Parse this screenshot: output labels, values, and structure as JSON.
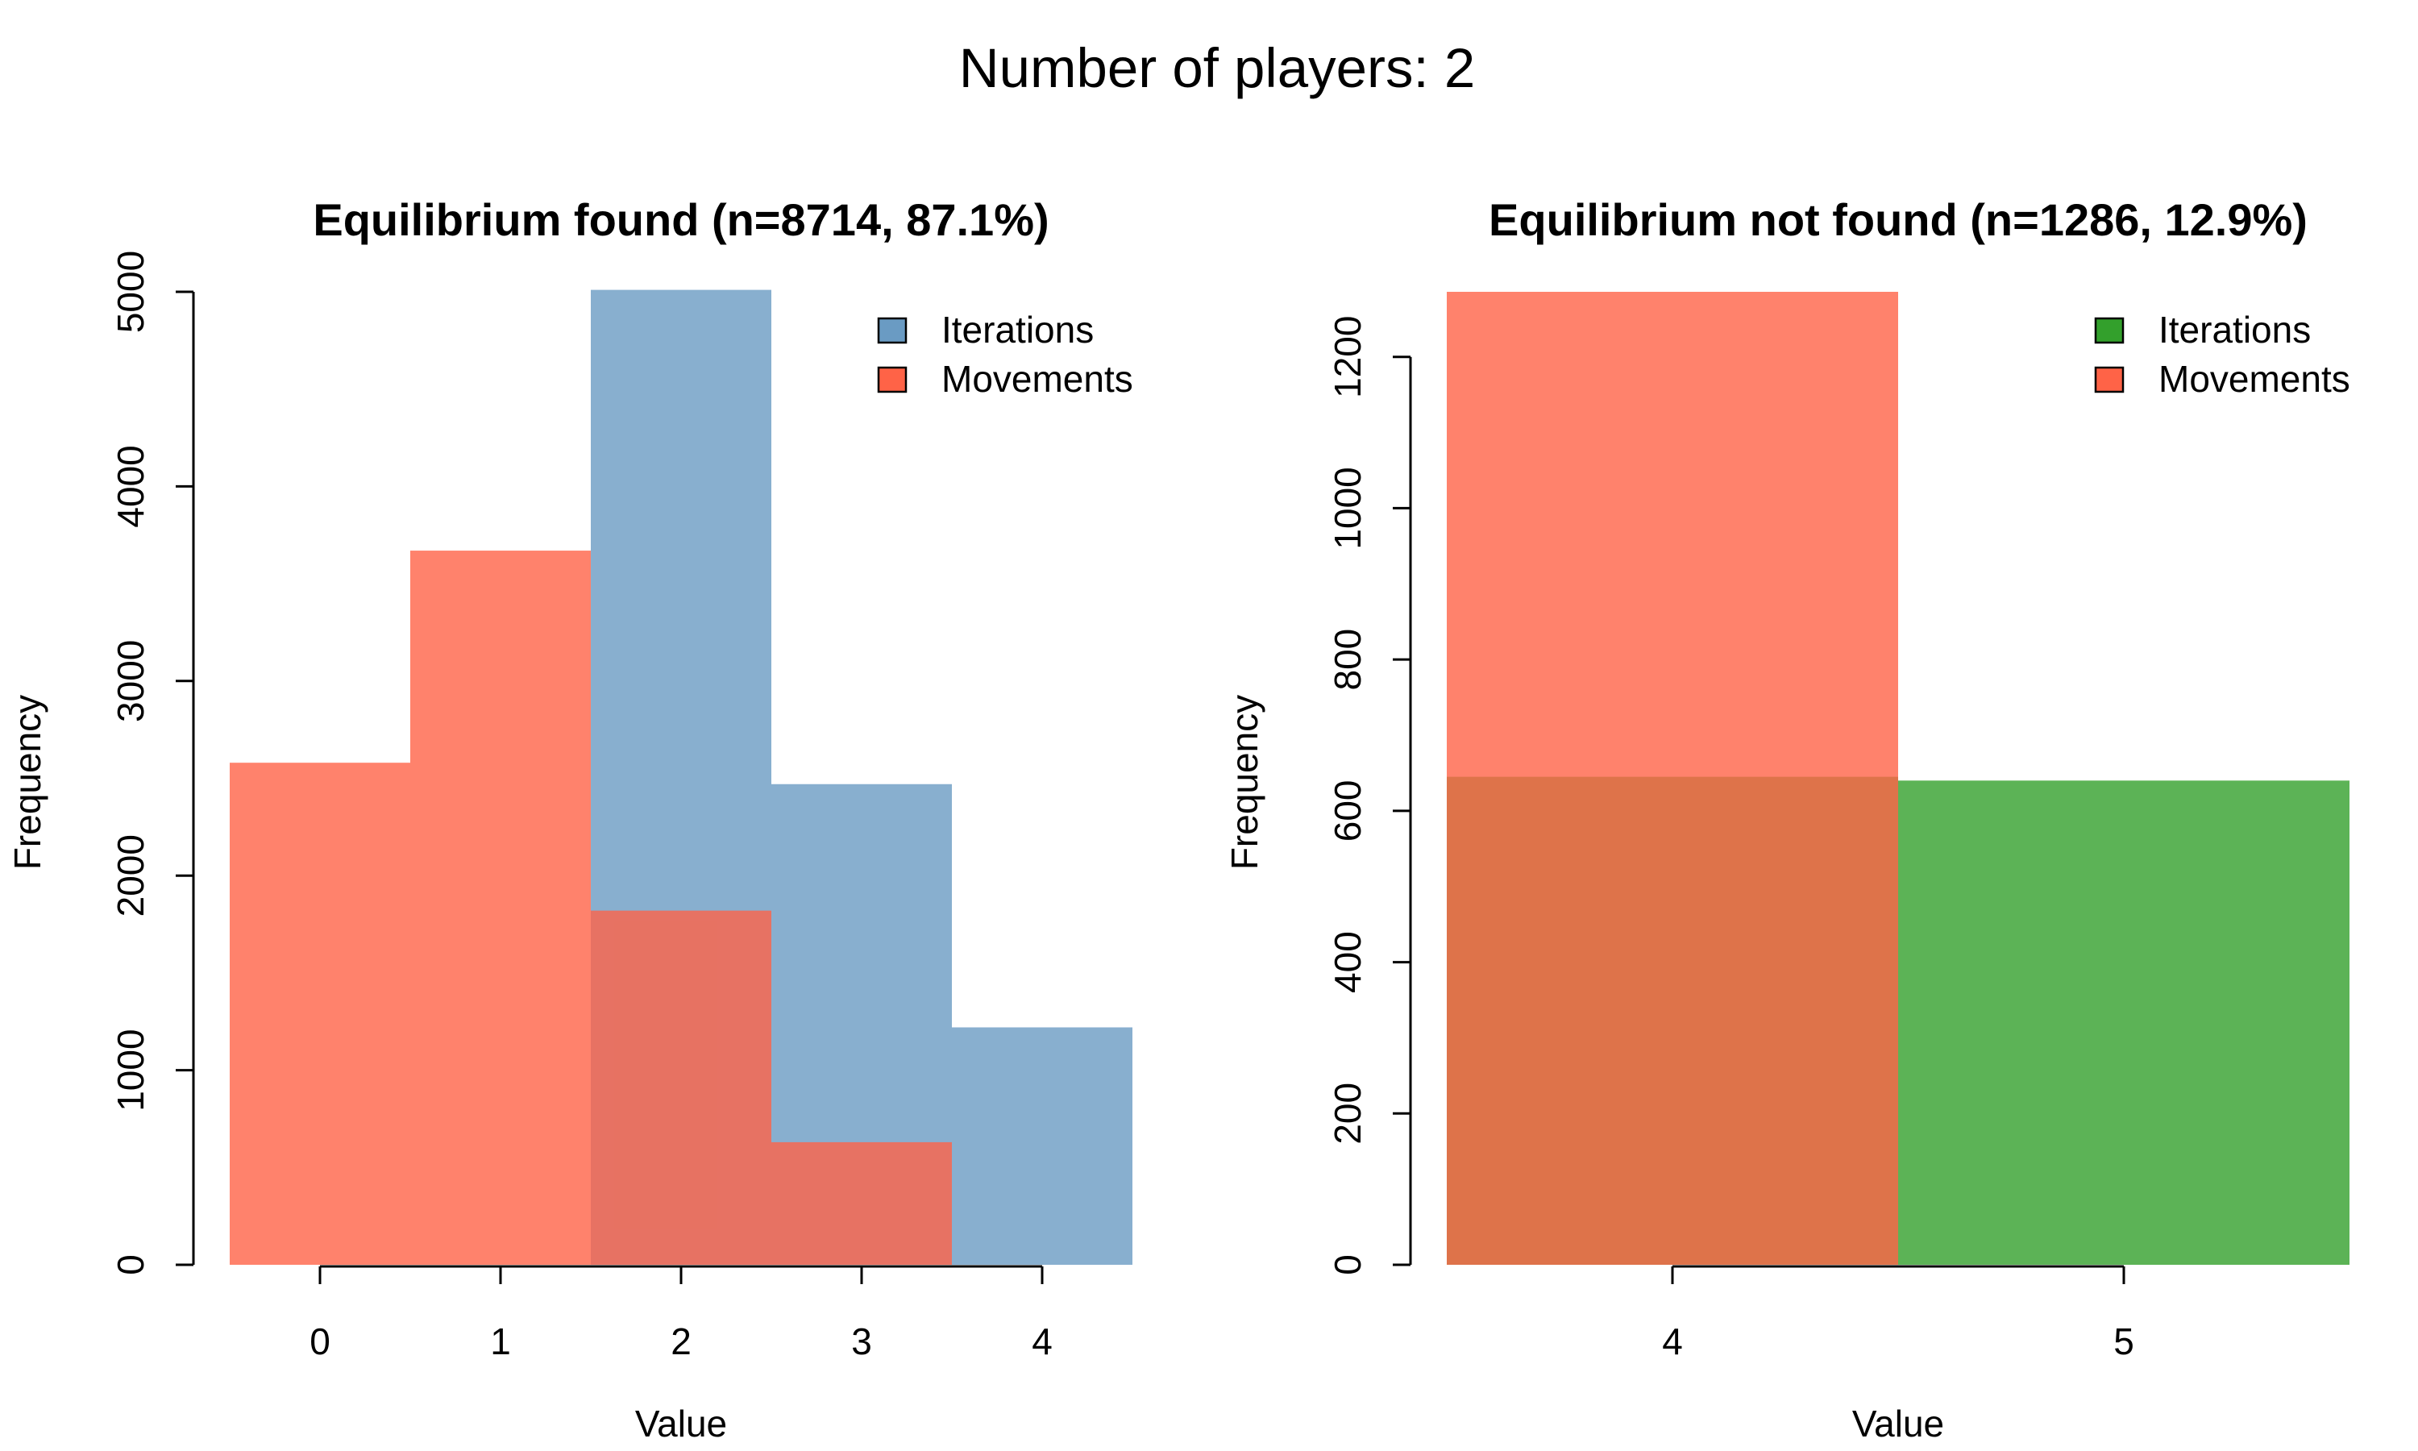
{
  "figure_title": "Number of players: 2",
  "chart_data": [
    {
      "type": "bar",
      "title": "Equilibrium found (n=8714, 87.1%)",
      "xlabel": "Value",
      "ylabel": "Frequency",
      "categories": [
        "0",
        "1",
        "2",
        "3",
        "4"
      ],
      "x": [
        0,
        1,
        2,
        3,
        4
      ],
      "xlim": [
        -0.5,
        4.5
      ],
      "ylim": [
        0,
        5000
      ],
      "yticks": [
        0,
        1000,
        2000,
        3000,
        4000,
        5000
      ],
      "ytick_labels": [
        "0",
        "1000",
        "2000",
        "3000",
        "4000",
        "5000"
      ],
      "legend_position": "top-right",
      "series": [
        {
          "name": "Iterations",
          "color": "#6a9bc3",
          "values": [
            0,
            0,
            5010,
            2470,
            1220
          ]
        },
        {
          "name": "Movements",
          "color": "#ff6347",
          "values": [
            2580,
            3670,
            1820,
            630,
            0
          ]
        }
      ],
      "grid": false
    },
    {
      "type": "bar",
      "title": "Equilibrium not found (n=1286, 12.9%)",
      "xlabel": "Value",
      "ylabel": "Frequency",
      "categories": [
        "4",
        "5"
      ],
      "x": [
        4,
        5
      ],
      "xlim": [
        3.5,
        5.5
      ],
      "ylim": [
        0,
        1286
      ],
      "yticks": [
        0,
        200,
        400,
        600,
        800,
        1000,
        1200
      ],
      "ytick_labels": [
        "0",
        "200",
        "400",
        "600",
        "800",
        "1000",
        "1200"
      ],
      "legend_position": "top-right",
      "series": [
        {
          "name": "Iterations",
          "color": "#33a02c",
          "values": [
            645,
            640
          ]
        },
        {
          "name": "Movements",
          "color": "#ff6347",
          "values": [
            1286,
            0
          ]
        }
      ],
      "grid": false
    }
  ]
}
